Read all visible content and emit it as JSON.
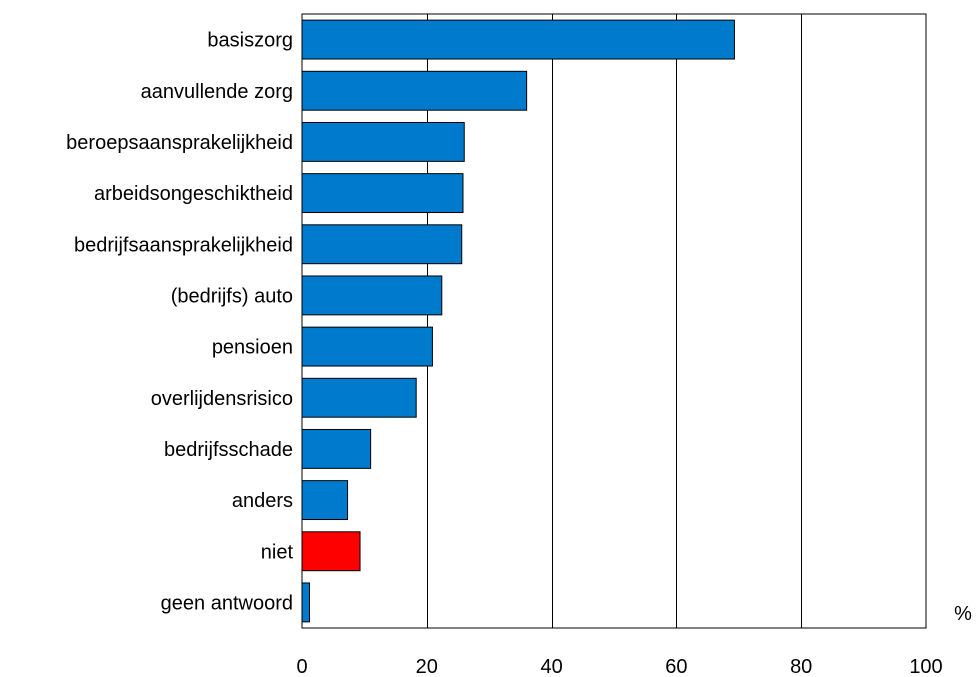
{
  "chart_data": {
    "type": "bar",
    "orientation": "horizontal",
    "categories": [
      "basiszorg",
      "aanvullende zorg",
      "beroepsaansprakelijkheid",
      "arbeidsongeschiktheid",
      "bedrijfsaansprakelijkheid",
      "(bedrijfs) auto",
      "pensioen",
      "overlijdensrisico",
      "bedrijfsschade",
      "anders",
      "niet",
      "geen antwoord"
    ],
    "values": [
      69.3,
      36.0,
      26.0,
      25.8,
      25.6,
      22.4,
      20.9,
      18.3,
      11.0,
      7.3,
      9.3,
      1.2
    ],
    "bar_colors": [
      "#007acc",
      "#007acc",
      "#007acc",
      "#007acc",
      "#007acc",
      "#007acc",
      "#007acc",
      "#007acc",
      "#007acc",
      "#007acc",
      "#ff0000",
      "#007acc"
    ],
    "xlim": [
      0,
      100
    ],
    "xticks": [
      0,
      20,
      40,
      60,
      80,
      100
    ],
    "xtick_labels": [
      "0",
      "20",
      "40",
      "60",
      "80",
      "100"
    ],
    "unit_label": "%",
    "title": "",
    "xlabel": "",
    "ylabel": "",
    "grid": "vertical",
    "legend": "none"
  }
}
